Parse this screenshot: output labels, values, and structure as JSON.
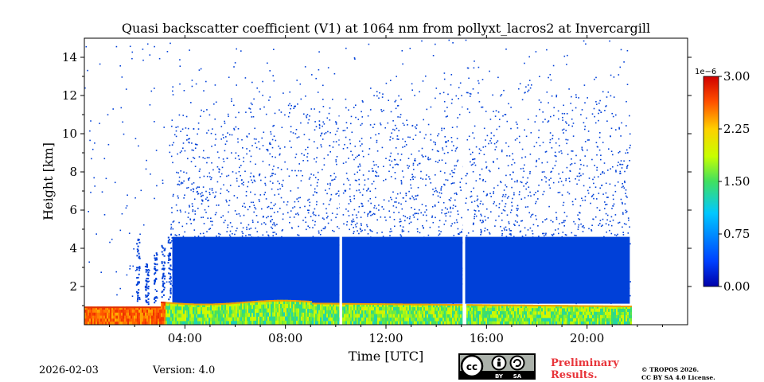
{
  "chart_data": {
    "type": "heatmap",
    "title": "Quasi backscatter coefficient (V1) at 1064 nm from pollyxt_lacros2 at Invercargill",
    "xlabel": "Time [UTC]",
    "ylabel": "Height [km]",
    "xlim_hours": [
      0,
      24
    ],
    "ylim_km": [
      0,
      15
    ],
    "x_ticks": [
      {
        "value": 4,
        "label": "04:00"
      },
      {
        "value": 8,
        "label": "08:00"
      },
      {
        "value": 12,
        "label": "12:00"
      },
      {
        "value": 16,
        "label": "16:00"
      },
      {
        "value": 20,
        "label": "20:00"
      }
    ],
    "y_ticks": [
      {
        "value": 2,
        "label": "2"
      },
      {
        "value": 4,
        "label": "4"
      },
      {
        "value": 6,
        "label": "6"
      },
      {
        "value": 8,
        "label": "8"
      },
      {
        "value": 10,
        "label": "10"
      },
      {
        "value": 12,
        "label": "12"
      },
      {
        "value": 14,
        "label": "14"
      }
    ],
    "colorbar": {
      "min": 0.0,
      "max": 3.0,
      "scale_label": "1e−6",
      "ticks": [
        {
          "value": 0.0,
          "label": "0.00"
        },
        {
          "value": 0.75,
          "label": "0.75"
        },
        {
          "value": 1.5,
          "label": "1.50"
        },
        {
          "value": 2.25,
          "label": "2.25"
        },
        {
          "value": 3.0,
          "label": "3.00"
        }
      ]
    },
    "data_gaps_hours": [
      [
        10.15,
        10.25
      ],
      [
        15.05,
        15.15
      ],
      [
        21.75,
        24.0
      ]
    ],
    "regions": [
      {
        "name": "boundary-layer",
        "hours": [
          0,
          21.75
        ],
        "height_km": [
          0,
          1.1
        ],
        "value_range": [
          1.0,
          3.0
        ]
      },
      {
        "name": "free-troposphere-dense",
        "hours": [
          3.5,
          21.7
        ],
        "height_km": [
          1.1,
          5.0
        ],
        "value": 0.05
      },
      {
        "name": "sparse-signal",
        "hours": [
          0,
          21.7
        ],
        "height_km": [
          5.0,
          15.0
        ],
        "value": 0.05
      }
    ]
  },
  "footer": {
    "date": "2026-02-03",
    "version": "Version: 4.0",
    "license_badge": "cc-by-sa-icon",
    "badge_by": "BY",
    "badge_sa": "SA",
    "preliminary_line1": "Preliminary",
    "preliminary_line2": "Results.",
    "copyright_line1": "© TROPOS 2026.",
    "copyright_line2": "CC BY SA 4.0 License."
  }
}
